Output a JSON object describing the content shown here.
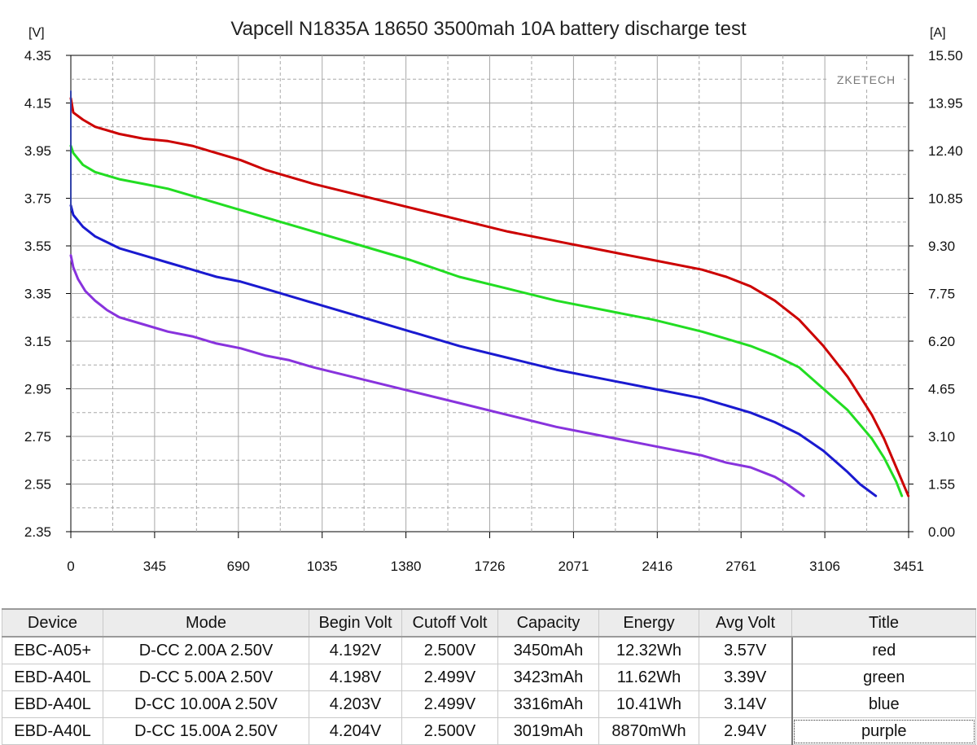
{
  "chart_data": {
    "type": "line",
    "title": "Vapcell N1835A 18650 3500mah 10A battery discharge test",
    "watermark": "ZKETECH",
    "y_unit": "[V]",
    "y2_unit": "[A]",
    "ylim": [
      2.35,
      4.35
    ],
    "y2lim": [
      0.0,
      15.5
    ],
    "xlim": [
      0,
      3451
    ],
    "y_ticks": [
      "4.35",
      "4.15",
      "3.95",
      "3.75",
      "3.55",
      "3.35",
      "3.15",
      "2.95",
      "2.75",
      "2.55",
      "2.35"
    ],
    "y2_ticks": [
      "15.50",
      "13.95",
      "12.40",
      "10.85",
      "9.30",
      "7.75",
      "6.20",
      "4.65",
      "3.10",
      "1.55",
      "0.00"
    ],
    "x_ticks": [
      "0",
      "345",
      "690",
      "1035",
      "1380",
      "1726",
      "2071",
      "2416",
      "2761",
      "3106",
      "3451"
    ],
    "grid": true,
    "series": [
      {
        "name": "red",
        "color": "#cc0000",
        "x": [
          0,
          10,
          50,
          100,
          200,
          300,
          400,
          500,
          600,
          700,
          800,
          900,
          1000,
          1200,
          1400,
          1600,
          1800,
          2000,
          2200,
          2400,
          2600,
          2700,
          2800,
          2900,
          3000,
          3100,
          3200,
          3300,
          3350,
          3400,
          3450
        ],
        "y": [
          4.17,
          4.11,
          4.08,
          4.05,
          4.02,
          4.0,
          3.99,
          3.97,
          3.94,
          3.91,
          3.87,
          3.84,
          3.81,
          3.76,
          3.71,
          3.66,
          3.61,
          3.57,
          3.53,
          3.49,
          3.45,
          3.42,
          3.38,
          3.32,
          3.24,
          3.13,
          3.0,
          2.84,
          2.74,
          2.62,
          2.5
        ]
      },
      {
        "name": "green",
        "color": "#22dd22",
        "x": [
          0,
          10,
          50,
          100,
          200,
          300,
          400,
          500,
          600,
          700,
          800,
          900,
          1000,
          1200,
          1400,
          1600,
          1800,
          2000,
          2200,
          2400,
          2600,
          2700,
          2800,
          2900,
          3000,
          3100,
          3200,
          3300,
          3350,
          3400,
          3423
        ],
        "y": [
          3.97,
          3.94,
          3.89,
          3.86,
          3.83,
          3.81,
          3.79,
          3.76,
          3.73,
          3.7,
          3.67,
          3.64,
          3.61,
          3.55,
          3.49,
          3.42,
          3.37,
          3.32,
          3.28,
          3.24,
          3.19,
          3.16,
          3.13,
          3.09,
          3.04,
          2.95,
          2.86,
          2.74,
          2.66,
          2.56,
          2.5
        ]
      },
      {
        "name": "blue",
        "color": "#1a1ad0",
        "x": [
          0,
          10,
          50,
          100,
          200,
          300,
          400,
          500,
          600,
          700,
          800,
          900,
          1000,
          1200,
          1400,
          1600,
          1800,
          2000,
          2200,
          2400,
          2600,
          2700,
          2800,
          2900,
          3000,
          3100,
          3200,
          3250,
          3316
        ],
        "y": [
          3.72,
          3.68,
          3.63,
          3.59,
          3.54,
          3.51,
          3.48,
          3.45,
          3.42,
          3.4,
          3.37,
          3.34,
          3.31,
          3.25,
          3.19,
          3.13,
          3.08,
          3.03,
          2.99,
          2.95,
          2.91,
          2.88,
          2.85,
          2.81,
          2.76,
          2.69,
          2.6,
          2.55,
          2.5
        ]
      },
      {
        "name": "purple",
        "color": "#8833dd",
        "x": [
          0,
          10,
          30,
          60,
          100,
          150,
          200,
          300,
          400,
          500,
          600,
          700,
          800,
          900,
          1000,
          1200,
          1400,
          1600,
          1800,
          2000,
          2200,
          2400,
          2600,
          2700,
          2800,
          2900,
          2950,
          3019
        ],
        "y": [
          3.51,
          3.46,
          3.41,
          3.36,
          3.32,
          3.28,
          3.25,
          3.22,
          3.19,
          3.17,
          3.14,
          3.12,
          3.09,
          3.07,
          3.04,
          2.99,
          2.94,
          2.89,
          2.84,
          2.79,
          2.75,
          2.71,
          2.67,
          2.64,
          2.62,
          2.58,
          2.55,
          2.5
        ]
      },
      {
        "name": "blue-spike",
        "color": "#3344aa",
        "x": [
          0,
          0
        ],
        "y": [
          4.2,
          3.7
        ]
      }
    ]
  },
  "table": {
    "headers": [
      "Device",
      "Mode",
      "Begin Volt",
      "Cutoff Volt",
      "Capacity",
      "Energy",
      "Avg Volt",
      "Title"
    ],
    "rows": [
      [
        "EBC-A05+",
        "D-CC  2.00A  2.50V",
        "4.192V",
        "2.500V",
        "3450mAh",
        "12.32Wh",
        "3.57V",
        "red"
      ],
      [
        "EBD-A40L",
        "D-CC  5.00A  2.50V",
        "4.198V",
        "2.499V",
        "3423mAh",
        "11.62Wh",
        "3.39V",
        "green"
      ],
      [
        "EBD-A40L",
        "D-CC  10.00A  2.50V",
        "4.203V",
        "2.499V",
        "3316mAh",
        "10.41Wh",
        "3.14V",
        "blue"
      ],
      [
        "EBD-A40L",
        "D-CC  15.00A  2.50V",
        "4.204V",
        "2.500V",
        "3019mAh",
        "8870mWh",
        "2.94V",
        "purple"
      ]
    ]
  }
}
